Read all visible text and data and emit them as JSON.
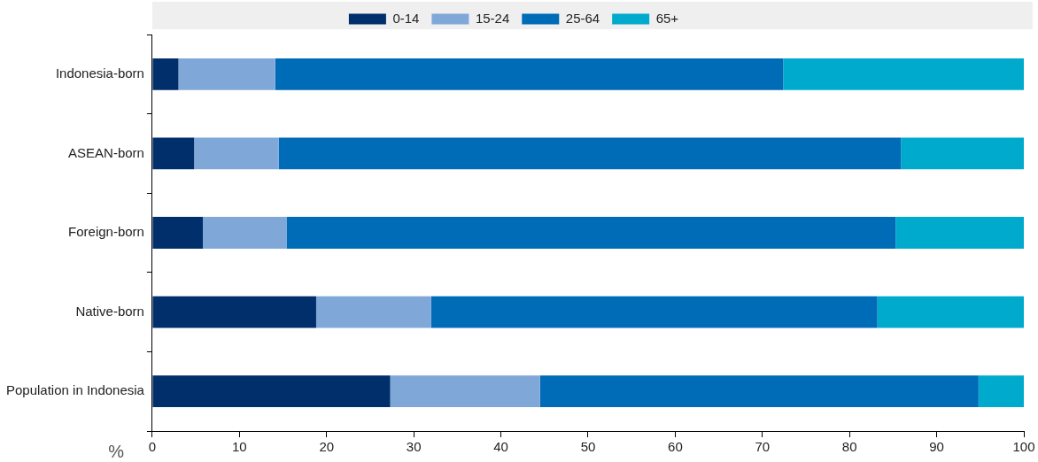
{
  "chart_data": {
    "type": "bar",
    "orientation": "horizontal",
    "stacked": true,
    "xlabel": "%",
    "legend": "top",
    "grid": false,
    "categories": [
      "Indonesia-born",
      "ASEAN-born",
      "Foreign-born",
      "Native-born",
      "Population in Indonesia"
    ],
    "series": [
      {
        "name": "0-14",
        "color": "#002f6c",
        "values": [
          3.0,
          4.8,
          5.8,
          18.8,
          27.3
        ]
      },
      {
        "name": "15-24",
        "color": "#7fa8d9",
        "values": [
          11.1,
          9.7,
          9.6,
          13.2,
          17.2
        ]
      },
      {
        "name": "25-64",
        "color": "#006bb6",
        "values": [
          58.3,
          71.4,
          69.9,
          51.2,
          50.3
        ]
      },
      {
        "name": "65+",
        "color": "#00aacc",
        "values": [
          27.6,
          14.1,
          14.7,
          16.8,
          5.2
        ]
      }
    ],
    "xlim": [
      0,
      100
    ],
    "xticks": [
      0,
      10,
      20,
      30,
      40,
      50,
      60,
      70,
      80,
      90,
      100
    ]
  }
}
